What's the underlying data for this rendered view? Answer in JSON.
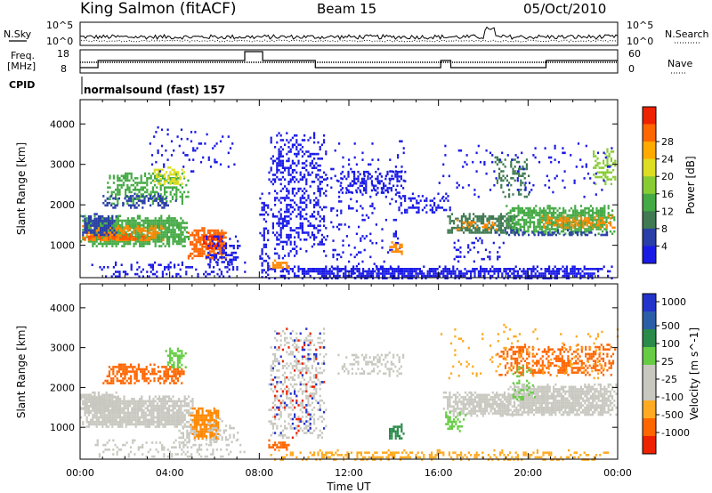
{
  "header": {
    "station": "King Salmon (fitACF)",
    "beam": "Beam 15",
    "date": "05/Oct/2010"
  },
  "sky_panel": {
    "left_label": "N.Sky",
    "right_label": "N.Search",
    "left_ticks": [
      "10^5",
      "10^0"
    ],
    "right_ticks": [
      "10^5",
      "10^0"
    ]
  },
  "freq_panel": {
    "label_line1": "Freq.",
    "label_line2": "[MHz]",
    "left_ticks": [
      "18",
      "8"
    ],
    "right_ticks": [
      "60",
      "0"
    ],
    "right_label": "Nave",
    "cpid_label": "CPID",
    "cpid_value": "normalsound (fast) 157",
    "freq_segments": [
      {
        "t0": 0.0,
        "t1": 0.8,
        "level": "low"
      },
      {
        "t0": 0.8,
        "t1": 7.35,
        "level": "mid"
      },
      {
        "t0": 7.35,
        "t1": 8.15,
        "level": "high"
      },
      {
        "t0": 8.15,
        "t1": 10.5,
        "level": "mid"
      },
      {
        "t0": 10.5,
        "t1": 16.1,
        "level": "low"
      },
      {
        "t0": 16.1,
        "t1": 16.55,
        "level": "mid"
      },
      {
        "t0": 16.55,
        "t1": 20.8,
        "level": "low"
      },
      {
        "t0": 20.8,
        "t1": 24.0,
        "level": "mid"
      }
    ]
  },
  "x_axis": {
    "title": "Time UT",
    "ticks": [
      "00:00",
      "04:00",
      "08:00",
      "12:00",
      "16:00",
      "20:00",
      "00:00"
    ],
    "range_hours": [
      0,
      24
    ]
  },
  "chart_data": [
    {
      "type": "heatmap",
      "name": "power",
      "ylabel": "Slant Range [km]",
      "yticks": [
        "1000",
        "2000",
        "3000",
        "4000"
      ],
      "ylim": [
        200,
        4600
      ],
      "colorbar": {
        "label": "Power [dB]",
        "ticks": [
          "4",
          "8",
          "12",
          "16",
          "20",
          "24",
          "28"
        ],
        "colors": [
          "#1a1ae6",
          "#2a3ea8",
          "#3f7a52",
          "#44aa44",
          "#88cc33",
          "#dddd22",
          "#ffaa00",
          "#ff6600",
          "#ee2200"
        ]
      },
      "regions": [
        {
          "t": [
            0.0,
            4.9
          ],
          "r": [
            1000,
            1750
          ],
          "c": "#44aa44",
          "d": 0.85
        },
        {
          "t": [
            0.0,
            3.7
          ],
          "r": [
            1100,
            1500
          ],
          "c": "#ff8800",
          "d": 0.65
        },
        {
          "t": [
            0.0,
            2.9
          ],
          "r": [
            1150,
            1300
          ],
          "c": "#ff5500",
          "d": 0.55
        },
        {
          "t": [
            0.0,
            1.6
          ],
          "r": [
            1250,
            1800
          ],
          "c": "#2a3ea8",
          "d": 0.7
        },
        {
          "t": [
            1.2,
            4.8
          ],
          "r": [
            2050,
            2800
          ],
          "c": "#44aa44",
          "d": 0.55
        },
        {
          "t": [
            3.2,
            4.7
          ],
          "r": [
            2500,
            2950
          ],
          "c": "#dddd22",
          "d": 0.5
        },
        {
          "t": [
            1.0,
            4.3
          ],
          "r": [
            1900,
            2300
          ],
          "c": "#2a3ea8",
          "d": 0.4
        },
        {
          "t": [
            4.8,
            6.5
          ],
          "r": [
            700,
            1450
          ],
          "c": "#ff6600",
          "d": 0.8
        },
        {
          "t": [
            5.4,
            6.3
          ],
          "r": [
            900,
            1300
          ],
          "c": "#ee2200",
          "d": 0.6
        },
        {
          "t": [
            5.6,
            7.1
          ],
          "r": [
            500,
            1300
          ],
          "c": "#1a1ae6",
          "d": 0.4
        },
        {
          "t": [
            0.5,
            7.4
          ],
          "r": [
            200,
            600
          ],
          "c": "#1a1ae6",
          "d": 0.22
        },
        {
          "t": [
            3.0,
            7.0
          ],
          "r": [
            2800,
            4000
          ],
          "c": "#1a1ae6",
          "d": 0.07
        },
        {
          "t": [
            8.4,
            23.7
          ],
          "r": [
            200,
            500
          ],
          "c": "#1a1ae6",
          "d": 0.75
        },
        {
          "t": [
            8.4,
            9.3
          ],
          "r": [
            450,
            650
          ],
          "c": "#ff8800",
          "d": 0.7
        },
        {
          "t": [
            8.4,
            11.0
          ],
          "r": [
            700,
            3800
          ],
          "c": "#1a1ae6",
          "d": 0.35
        },
        {
          "t": [
            8.0,
            8.4
          ],
          "r": [
            200,
            2300
          ],
          "c": "#1a1ae6",
          "d": 0.45
        },
        {
          "t": [
            11.0,
            14.5
          ],
          "r": [
            200,
            3600
          ],
          "c": "#1a1ae6",
          "d": 0.08
        },
        {
          "t": [
            11.5,
            14.6
          ],
          "r": [
            2300,
            2900
          ],
          "c": "#1a1ae6",
          "d": 0.35
        },
        {
          "t": [
            13.8,
            14.4
          ],
          "r": [
            800,
            1100
          ],
          "c": "#ff8800",
          "d": 0.75
        },
        {
          "t": [
            14.2,
            16.5
          ],
          "r": [
            1800,
            2300
          ],
          "c": "#1a1ae6",
          "d": 0.35
        },
        {
          "t": [
            16.3,
            19.5
          ],
          "r": [
            1300,
            1800
          ],
          "c": "#3f7a52",
          "d": 0.7
        },
        {
          "t": [
            16.8,
            18.6
          ],
          "r": [
            1400,
            1650
          ],
          "c": "#ff8800",
          "d": 0.35
        },
        {
          "t": [
            19.0,
            23.9
          ],
          "r": [
            1300,
            2000
          ],
          "c": "#44aa44",
          "d": 0.75
        },
        {
          "t": [
            20.5,
            23.9
          ],
          "r": [
            1450,
            1750
          ],
          "c": "#ff8800",
          "d": 0.5
        },
        {
          "t": [
            18.5,
            23.8
          ],
          "r": [
            1250,
            1400
          ],
          "c": "#2a3ea8",
          "d": 0.5
        },
        {
          "t": [
            18.5,
            20.0
          ],
          "r": [
            2200,
            3200
          ],
          "c": "#3f7a52",
          "d": 0.3
        },
        {
          "t": [
            22.8,
            23.9
          ],
          "r": [
            2500,
            3400
          ],
          "c": "#88cc33",
          "d": 0.4
        },
        {
          "t": [
            16.5,
            19.0
          ],
          "r": [
            600,
            1200
          ],
          "c": "#1a1ae6",
          "d": 0.15
        },
        {
          "t": [
            16.0,
            24.0
          ],
          "r": [
            2200,
            3600
          ],
          "c": "#1a1ae6",
          "d": 0.06
        }
      ]
    },
    {
      "type": "heatmap",
      "name": "velocity",
      "ylabel": "Slant Range [km]",
      "yticks": [
        "1000",
        "2000",
        "3000",
        "4000"
      ],
      "ylim": [
        200,
        4600
      ],
      "colorbar": {
        "label": "Velocity [m s^-1]",
        "ticks": [
          "1000",
          "500",
          "100",
          "25",
          "-25",
          "-100",
          "-500",
          "-1000"
        ],
        "colors": [
          "#2233cc",
          "#2a5fa8",
          "#2a8a4a",
          "#66cc44",
          "#c8c8c0",
          "#c8c8c0",
          "#ffaa22",
          "#ff6600",
          "#ee2200"
        ]
      },
      "regions": [
        {
          "t": [
            0.0,
            5.0
          ],
          "r": [
            1000,
            1800
          ],
          "c": "#c8c8c0",
          "d": 0.92
        },
        {
          "t": [
            0.0,
            1.6
          ],
          "r": [
            1400,
            1900
          ],
          "c": "#c8c8c0",
          "d": 0.9
        },
        {
          "t": [
            1.0,
            4.6
          ],
          "r": [
            2100,
            2600
          ],
          "c": "#ff6600",
          "d": 0.55
        },
        {
          "t": [
            3.8,
            4.7
          ],
          "r": [
            2500,
            3000
          ],
          "c": "#66cc44",
          "d": 0.5
        },
        {
          "t": [
            4.9,
            6.2
          ],
          "r": [
            700,
            1500
          ],
          "c": "#ff8800",
          "d": 0.88
        },
        {
          "t": [
            4.3,
            5.2
          ],
          "r": [
            600,
            1000
          ],
          "c": "#c8c8c0",
          "d": 0.55
        },
        {
          "t": [
            5.6,
            7.0
          ],
          "r": [
            600,
            1300
          ],
          "c": "#c8c8c0",
          "d": 0.35
        },
        {
          "t": [
            0.3,
            7.3
          ],
          "r": [
            250,
            700
          ],
          "c": "#c8c8c0",
          "d": 0.25
        },
        {
          "t": [
            8.4,
            9.3
          ],
          "r": [
            450,
            700
          ],
          "c": "#ff6600",
          "d": 0.7
        },
        {
          "t": [
            8.4,
            23.7
          ],
          "r": [
            200,
            450
          ],
          "c": "#ffaa22",
          "d": 0.35
        },
        {
          "t": [
            8.4,
            11.0
          ],
          "r": [
            700,
            3500
          ],
          "c": "#c8c8c0",
          "d": 0.3
        },
        {
          "t": [
            8.4,
            11.0
          ],
          "r": [
            700,
            3500
          ],
          "c": "#ee2200",
          "d": 0.05
        },
        {
          "t": [
            8.4,
            11.0
          ],
          "r": [
            700,
            3500
          ],
          "c": "#2233cc",
          "d": 0.04
        },
        {
          "t": [
            11.5,
            14.5
          ],
          "r": [
            2300,
            2900
          ],
          "c": "#c8c8c0",
          "d": 0.3
        },
        {
          "t": [
            13.7,
            14.4
          ],
          "r": [
            700,
            1100
          ],
          "c": "#2a8a4a",
          "d": 0.75
        },
        {
          "t": [
            16.2,
            19.4
          ],
          "r": [
            1300,
            1900
          ],
          "c": "#c8c8c0",
          "d": 0.82
        },
        {
          "t": [
            16.3,
            17.2
          ],
          "r": [
            900,
            1400
          ],
          "c": "#66cc44",
          "d": 0.4
        },
        {
          "t": [
            19.0,
            23.9
          ],
          "r": [
            1300,
            2100
          ],
          "c": "#c8c8c0",
          "d": 0.85
        },
        {
          "t": [
            18.6,
            23.9
          ],
          "r": [
            2300,
            3100
          ],
          "c": "#ff6600",
          "d": 0.45
        },
        {
          "t": [
            19.3,
            20.3
          ],
          "r": [
            1600,
            2600
          ],
          "c": "#66cc44",
          "d": 0.2
        },
        {
          "t": [
            16.0,
            24.0
          ],
          "r": [
            2200,
            3600
          ],
          "c": "#ffaa22",
          "d": 0.06
        }
      ]
    }
  ]
}
